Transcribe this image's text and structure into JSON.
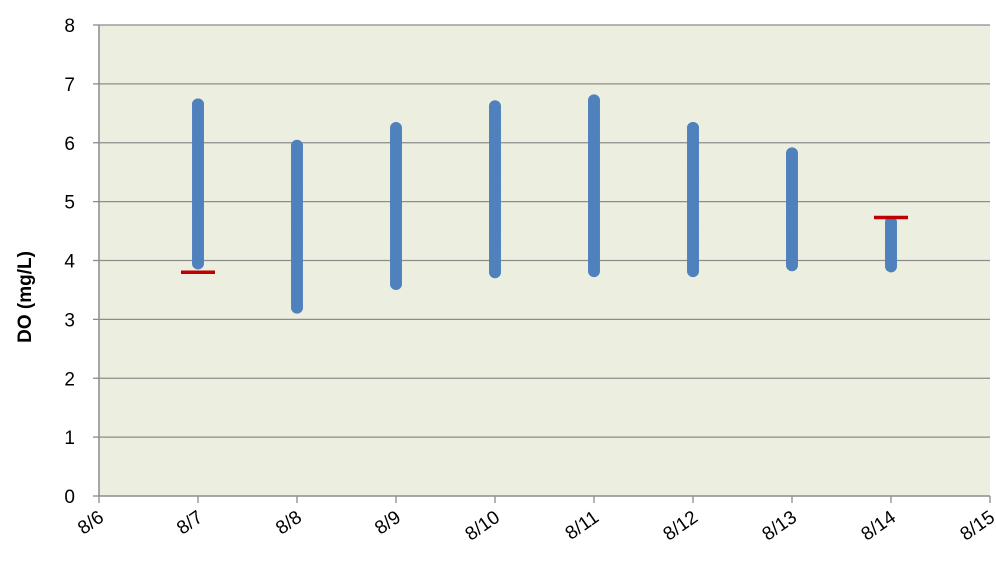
{
  "chart_data": {
    "type": "scatter",
    "title": "",
    "xlabel": "",
    "ylabel": "DO (mg/L)",
    "xlim": [
      "8/6",
      "8/15"
    ],
    "ylim": [
      0,
      8
    ],
    "x_tick_labels": [
      "8/6",
      "8/7",
      "8/8",
      "8/9",
      "8/10",
      "8/11",
      "8/12",
      "8/13",
      "8/14",
      "8/15"
    ],
    "y_tick_labels": [
      "0",
      "1",
      "2",
      "3",
      "4",
      "5",
      "6",
      "7",
      "8"
    ],
    "grid": "horizontal",
    "plot_background": "#ecefe0",
    "series": [
      {
        "type": "scatter",
        "color": "#4f81bd",
        "marker": "circle",
        "points_by_date": [
          {
            "x": "8/7",
            "ymin": 3.95,
            "ymax": 6.65
          },
          {
            "x": "8/8",
            "ymin": 3.2,
            "ymax": 5.95
          },
          {
            "x": "8/9",
            "ymin": 3.6,
            "ymax": 6.25
          },
          {
            "x": "8/10",
            "ymin": 3.8,
            "ymax": 6.62
          },
          {
            "x": "8/11",
            "ymin": 3.82,
            "ymax": 6.72
          },
          {
            "x": "8/12",
            "ymin": 3.82,
            "ymax": 6.25
          },
          {
            "x": "8/13",
            "ymin": 3.92,
            "ymax": 5.82
          },
          {
            "x": "8/14",
            "ymin": 3.9,
            "ymax": 4.65
          }
        ]
      },
      {
        "type": "marker",
        "color": "#c00000",
        "marker": "dash",
        "points": [
          {
            "x": "8/7",
            "y": 3.8
          },
          {
            "x": "8/14",
            "y": 4.73
          }
        ]
      }
    ]
  }
}
